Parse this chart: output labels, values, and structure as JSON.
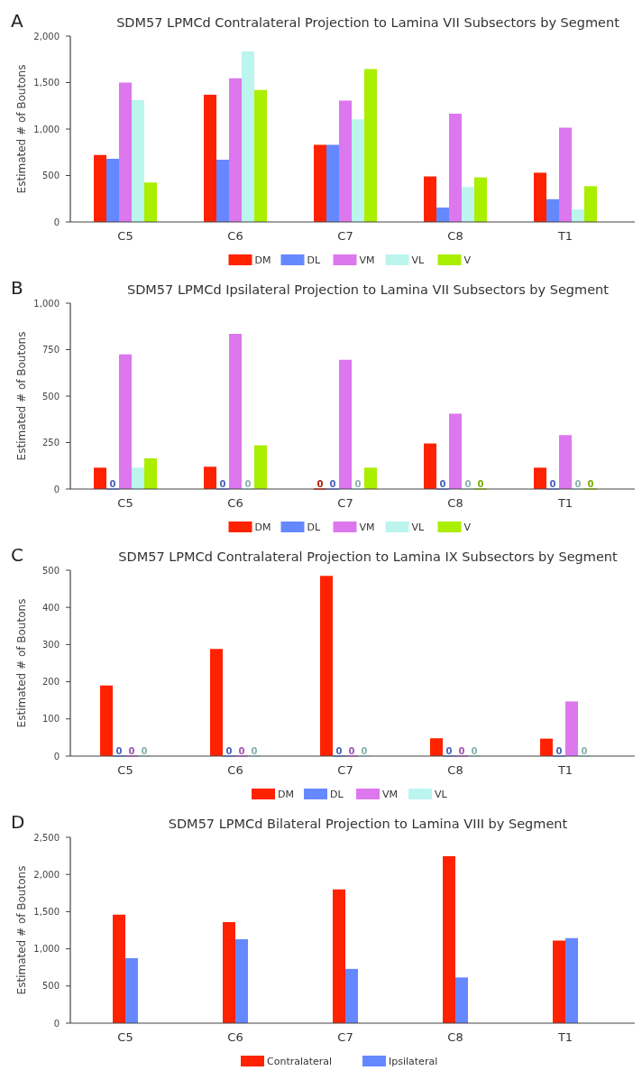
{
  "chart_data": [
    {
      "type": "bar",
      "title": "SDM57 LPMCd Contralateral Projection to Lamina VII Subsectors by Segment",
      "ylabel": "Estimated # of Boutons",
      "annotations": [
        "A"
      ],
      "categories": [
        "C5",
        "C6",
        "C7",
        "C8",
        "T1"
      ],
      "ylim": [
        0,
        2000
      ],
      "yticks": [
        0,
        500,
        {
          "value": 1000,
          "label": "1,000"
        },
        {
          "value": 1500,
          "label": "1,500"
        },
        {
          "value": 2000,
          "label": "2,000"
        }
      ],
      "legend": "bottom",
      "grid": false,
      "series": [
        {
          "name": "DM",
          "color": "#ff2200",
          "values": [
            720,
            1370,
            830,
            490,
            530
          ]
        },
        {
          "name": "DL",
          "color": "#6688ff",
          "values": [
            680,
            670,
            830,
            155,
            245
          ]
        },
        {
          "name": "VM",
          "color": "#dd77ee",
          "values": [
            1500,
            1545,
            1305,
            1165,
            1015
          ]
        },
        {
          "name": "VL",
          "color": "#bbf5ee",
          "values": [
            1310,
            1835,
            1105,
            375,
            135
          ]
        },
        {
          "name": "V",
          "color": "#aaee00",
          "values": [
            425,
            1420,
            1645,
            480,
            385
          ]
        }
      ]
    },
    {
      "type": "bar",
      "title": "SDM57 LPMCd Ipsilateral Projection to Lamina VII Subsectors by Segment",
      "ylabel": "Estimated # of Boutons",
      "annotations": [
        "B"
      ],
      "categories": [
        "C5",
        "C6",
        "C7",
        "C8",
        "T1"
      ],
      "ylim": [
        0,
        1000
      ],
      "yticks": [
        0,
        250,
        500,
        750,
        {
          "value": 1000,
          "label": "1,000"
        }
      ],
      "legend": "bottom",
      "grid": false,
      "series": [
        {
          "name": "DM",
          "color": "#ff2200",
          "values": [
            115,
            120,
            0,
            245,
            115
          ],
          "value_labels": [
            null,
            null,
            "0",
            null,
            null
          ]
        },
        {
          "name": "DL",
          "color": "#6688ff",
          "values": [
            0,
            0,
            0,
            0,
            0
          ],
          "value_labels": [
            "0",
            "0",
            "0",
            "0",
            "0"
          ]
        },
        {
          "name": "VM",
          "color": "#dd77ee",
          "values": [
            725,
            835,
            695,
            405,
            290
          ]
        },
        {
          "name": "VL",
          "color": "#bbf5ee",
          "values": [
            115,
            0,
            0,
            0,
            0
          ],
          "value_labels": [
            null,
            "0",
            "0",
            "0",
            "0"
          ]
        },
        {
          "name": "V",
          "color": "#aaee00",
          "values": [
            165,
            235,
            115,
            0,
            0
          ],
          "value_labels": [
            null,
            null,
            null,
            "0",
            "0"
          ]
        }
      ]
    },
    {
      "type": "bar",
      "title": "SDM57 LPMCd Contralateral Projection to Lamina IX Subsectors by Segment",
      "ylabel": "Estimated # of Boutons",
      "annotations": [
        "C"
      ],
      "categories": [
        "C5",
        "C6",
        "C7",
        "C8",
        "T1"
      ],
      "ylim": [
        0,
        500
      ],
      "yticks": [
        0,
        100,
        200,
        300,
        400,
        500
      ],
      "legend": "bottom",
      "grid": false,
      "series": [
        {
          "name": "DM",
          "color": "#ff2200",
          "values": [
            190,
            288,
            485,
            48,
            47
          ]
        },
        {
          "name": "DL",
          "color": "#6688ff",
          "values": [
            0,
            0,
            0,
            0,
            0
          ],
          "value_labels": [
            "0",
            "0",
            "0",
            "0",
            "0"
          ]
        },
        {
          "name": "VM",
          "color": "#dd77ee",
          "values": [
            0,
            0,
            0,
            0,
            147
          ],
          "value_labels": [
            "0",
            "0",
            "0",
            "0",
            null
          ]
        },
        {
          "name": "VL",
          "color": "#bbf5ee",
          "values": [
            0,
            0,
            0,
            0,
            0
          ],
          "value_labels": [
            "0",
            "0",
            "0",
            "0",
            "0"
          ]
        }
      ]
    },
    {
      "type": "bar",
      "title": "SDM57 LPMCd Bilateral Projection to Lamina VIII by Segment",
      "ylabel": "Estimated # of Boutons",
      "annotations": [
        "D"
      ],
      "categories": [
        "C5",
        "C6",
        "C7",
        "C8",
        "T1"
      ],
      "ylim": [
        0,
        2500
      ],
      "yticks": [
        0,
        500,
        {
          "value": 1000,
          "label": "1,000"
        },
        {
          "value": 1500,
          "label": "1,500"
        },
        {
          "value": 2000,
          "label": "2,000"
        },
        {
          "value": 2500,
          "label": "2,500"
        }
      ],
      "legend": "bottom",
      "grid": false,
      "series": [
        {
          "name": "Contralateral",
          "color": "#ff2200",
          "values": [
            1460,
            1360,
            1800,
            2245,
            1110
          ]
        },
        {
          "name": "Ipsilateral",
          "color": "#6688ff",
          "values": [
            875,
            1130,
            730,
            615,
            1145
          ]
        }
      ]
    }
  ]
}
